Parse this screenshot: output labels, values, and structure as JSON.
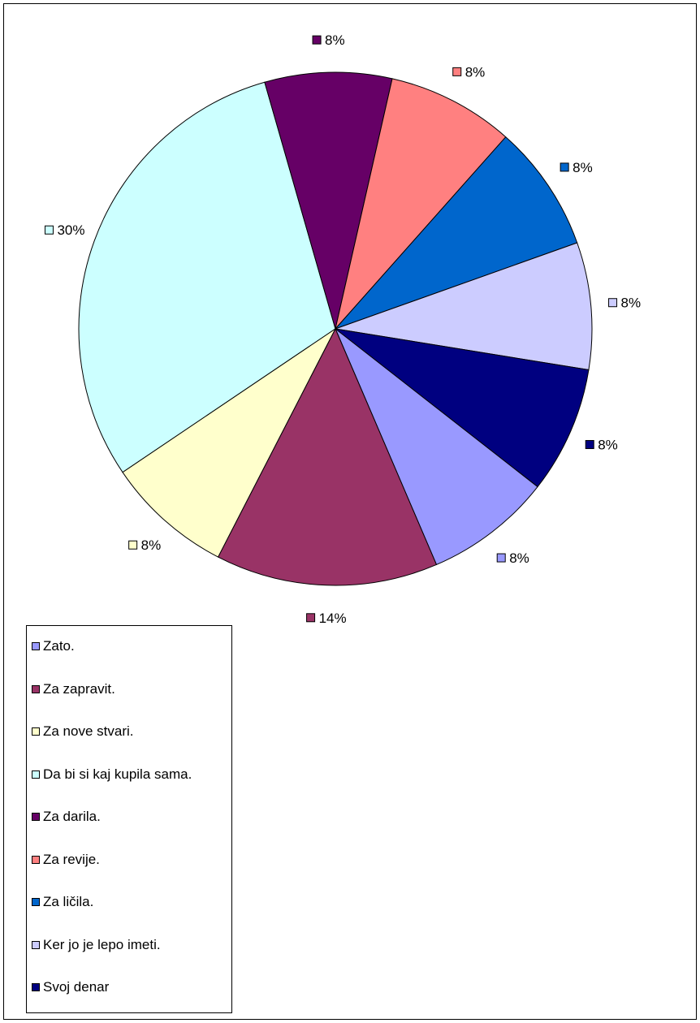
{
  "chart_data": {
    "type": "pie",
    "title": "",
    "start_angle_deg": 236,
    "direction": "clockwise",
    "slices": [
      {
        "label": "Da bi si kaj kupila sama.",
        "value": 30,
        "display": "30%",
        "color": "#CCFFFF"
      },
      {
        "label": "Za darila.",
        "value": 8,
        "display": "8%",
        "color": "#660066"
      },
      {
        "label": "Za revije.",
        "value": 8,
        "display": "8%",
        "color": "#FF8080"
      },
      {
        "label": "Za ličila.",
        "value": 8,
        "display": "8%",
        "color": "#0066CC"
      },
      {
        "label": "Ker jo je lepo imeti.",
        "value": 8,
        "display": "8%",
        "color": "#CCCCFF"
      },
      {
        "label": "Svoj denar",
        "value": 8,
        "display": "8%",
        "color": "#000080"
      },
      {
        "label": "Zato.",
        "value": 8,
        "display": "8%",
        "color": "#9999FF"
      },
      {
        "label": "Za zapravit.",
        "value": 14,
        "display": "14%",
        "color": "#993366"
      },
      {
        "label": "Za nove stvari.",
        "value": 8,
        "display": "8%",
        "color": "#FFFFCC"
      }
    ],
    "legend": {
      "placement": "bottom-left",
      "order": [
        "Zato.",
        "Za zapravit.",
        "Za nove stvari.",
        "Da bi si kaj kupila sama.",
        "Za darila.",
        "Za revije.",
        "Za ličila.",
        "Ker jo je lepo imeti.",
        "Svoj denar"
      ]
    }
  }
}
